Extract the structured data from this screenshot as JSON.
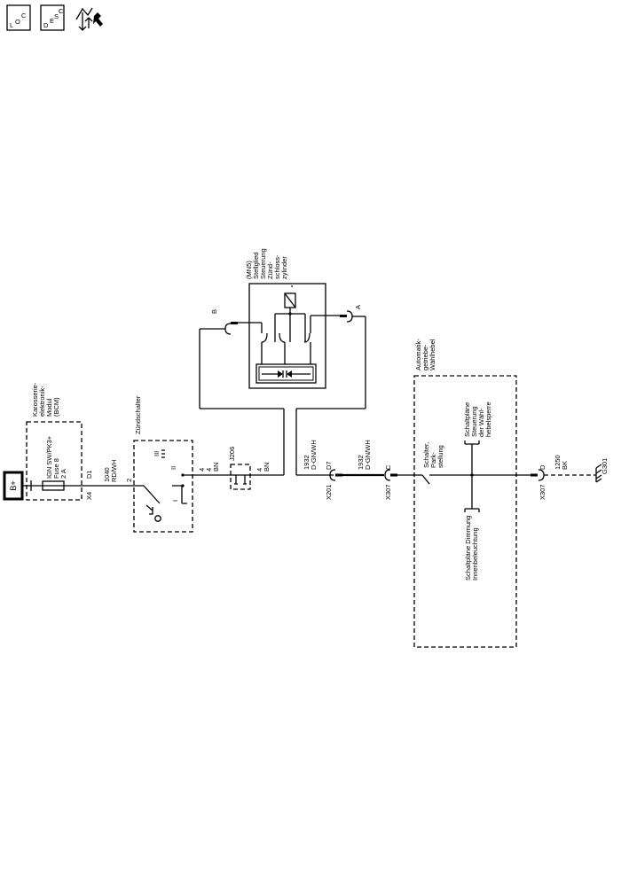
{
  "header_icons": {
    "loc": {
      "main": "L",
      "sub": "O",
      "sup": "C"
    },
    "desc": {
      "main": "D",
      "sub": "E",
      "sub2": "S",
      "sup": "C"
    }
  },
  "battery": {
    "label": "B+"
  },
  "bcm": {
    "lines": [
      "Karosserie-",
      "elektronik-",
      "Modul",
      "(BCM)"
    ],
    "fuse_lines": [
      "IGN SW/PK3+",
      "Fuse 8",
      "2 A"
    ],
    "pin": "D1",
    "connector": "X4"
  },
  "wire_1040": {
    "circuit": "1040",
    "color": "RD/WH"
  },
  "ignition_switch": {
    "label": "Zündschalter",
    "pin_in": "2",
    "pin_out": "4",
    "positions": [
      "III",
      "II",
      "I"
    ]
  },
  "wire_4a": {
    "circuit": "4",
    "color": "BN"
  },
  "splice": {
    "label": "J206"
  },
  "wire_4b": {
    "circuit": "4",
    "color": "BN"
  },
  "actuator": {
    "lines": [
      "(MN5)",
      "Stellglied",
      "Steuerung",
      "Zünd-",
      "schloss-",
      "zylinder"
    ],
    "pin_b": "B",
    "pin_a": "A"
  },
  "wire_d7": {
    "circuit": "1932",
    "color": "D-GN/WH",
    "pin": "D7",
    "connector": "X201"
  },
  "wire_c": {
    "circuit": "1932",
    "color": "D-GN/WH",
    "pin": "C",
    "connector": "X307"
  },
  "selector": {
    "lines": [
      "Automatik-",
      "getriebe-",
      "Wählhebel"
    ],
    "switch_lines": [
      "Schalter,",
      "Park-",
      "stellung"
    ],
    "ref_top_lines": [
      "Schaltpläne",
      "Steuerung",
      "der Wähl-",
      "hebelsperre"
    ],
    "ref_bottom_lines": [
      "Schaltpläne Dimmung",
      "Innenbeleuchtung"
    ]
  },
  "wire_d": {
    "circuit": "1250",
    "color": "BK",
    "pin": "D",
    "connector": "X307"
  },
  "ground": {
    "label": "G301"
  }
}
